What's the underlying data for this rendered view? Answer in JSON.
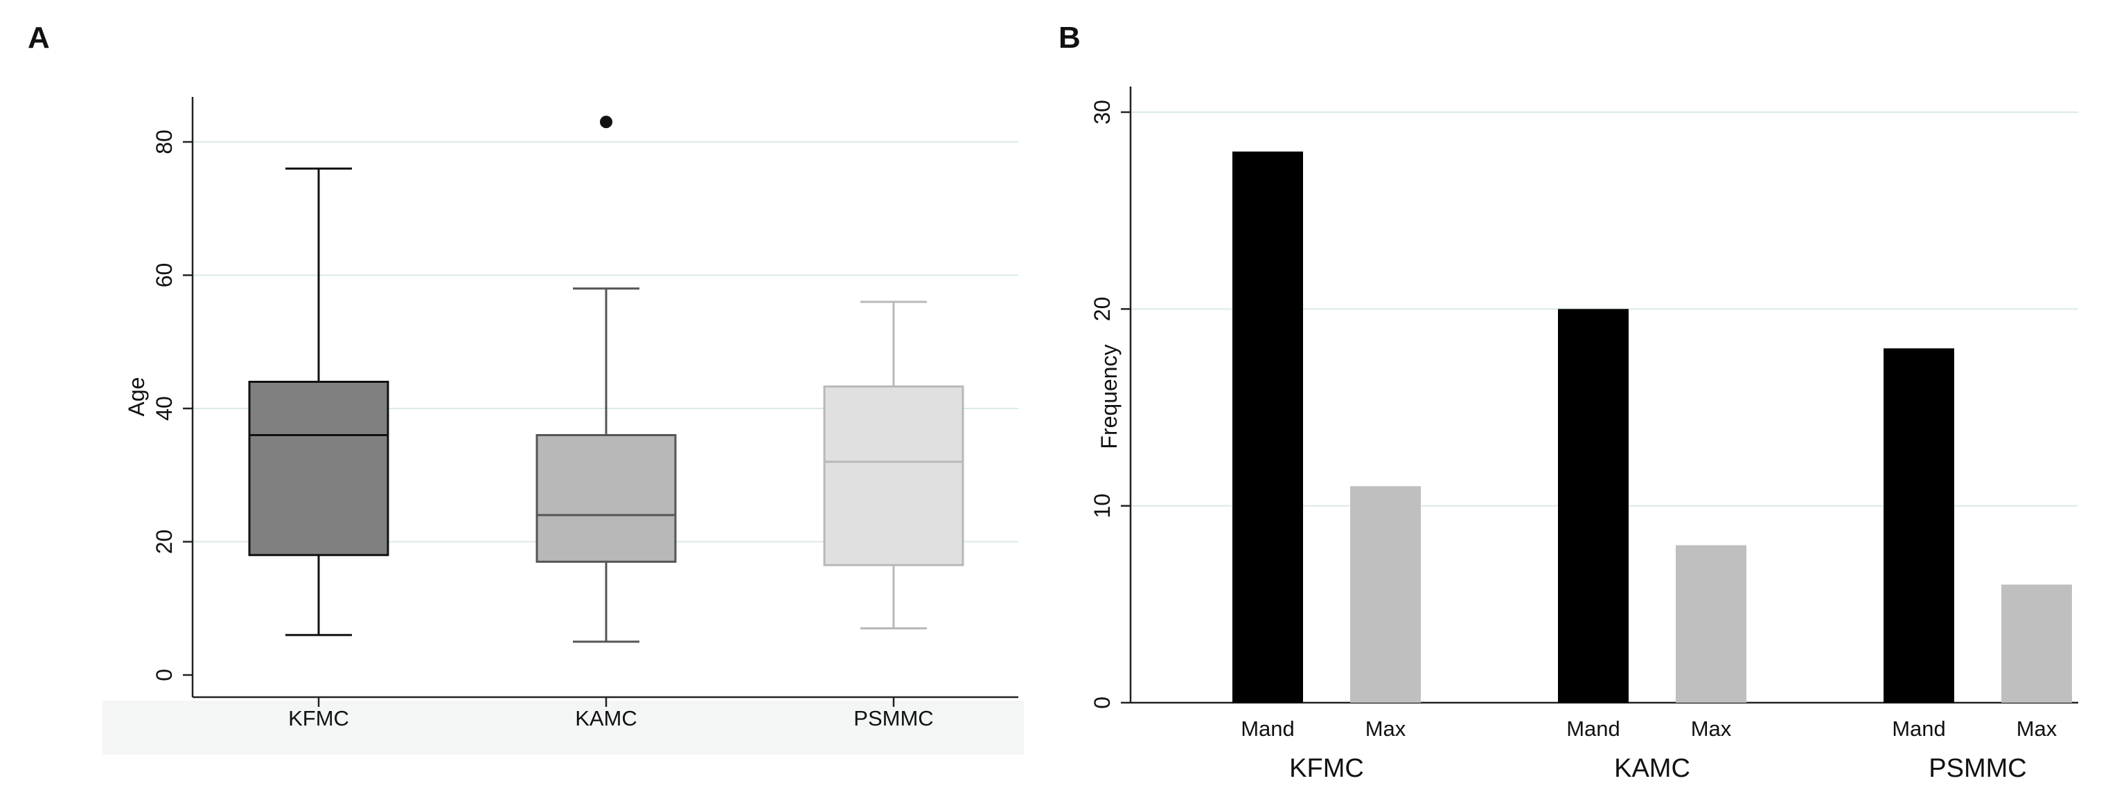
{
  "chart_data": [
    {
      "panel": "A",
      "type": "box",
      "ylabel": "Age",
      "ylim": [
        0,
        87
      ],
      "yticks": [
        0,
        20,
        40,
        60,
        80
      ],
      "grid": true,
      "colors": [
        "#808080",
        "#b8b8b8",
        "#e0e0e0"
      ],
      "edge_colors": [
        "#111111",
        "#555555",
        "#b8b8b8"
      ],
      "boxes": [
        {
          "label": "KFMC",
          "min": 6,
          "q1": 18,
          "median": 36,
          "q3": 44,
          "max": 76,
          "outliers": []
        },
        {
          "label": "KAMC",
          "min": 5,
          "q1": 17,
          "median": 24,
          "q3": 36,
          "max": 58,
          "outliers": [
            83
          ]
        },
        {
          "label": "PSMMC",
          "min": 7,
          "q1": 16.5,
          "median": 32,
          "q3": 43.3,
          "max": 56,
          "outliers": []
        }
      ]
    },
    {
      "panel": "B",
      "type": "bar",
      "ylabel": "Frequency",
      "ylim": [
        0,
        30
      ],
      "yticks": [
        0,
        10,
        20,
        30
      ],
      "grid": true,
      "groups": [
        "KFMC",
        "KAMC",
        "PSMMC"
      ],
      "subcategories": [
        "Mand",
        "Max"
      ],
      "colors": [
        "#000000",
        "#bfbfbf"
      ],
      "series": [
        {
          "name": "Mand",
          "values": [
            28,
            20,
            18
          ]
        },
        {
          "name": "Max",
          "values": [
            11,
            8,
            6
          ]
        }
      ]
    }
  ]
}
